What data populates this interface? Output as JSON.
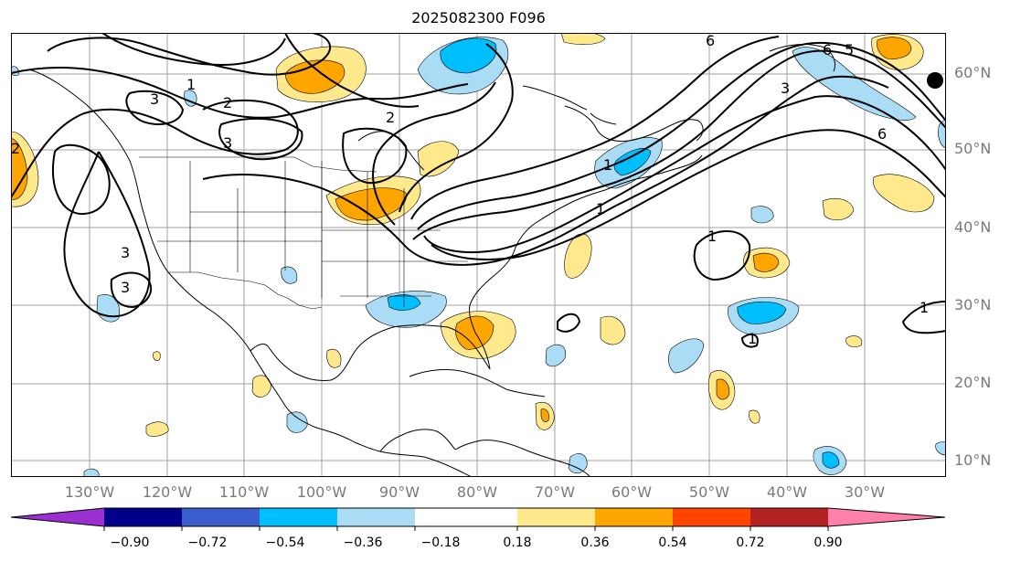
{
  "title": "2025082300 F096",
  "lat_labels": [
    "60°N",
    "50°N",
    "40°N",
    "30°N",
    "20°N",
    "10°N"
  ],
  "lon_labels": [
    "130°W",
    "120°W",
    "110°W",
    "100°W",
    "90°W",
    "80°W",
    "70°W",
    "60°W",
    "50°W",
    "40°W",
    "30°W"
  ],
  "contour_labels": [
    "1",
    "2",
    "3",
    "3",
    "2",
    "3",
    "2",
    "3",
    "1",
    "1",
    "6",
    "5",
    "6",
    "3",
    "6",
    "1",
    "1",
    "1"
  ],
  "colorbar": {
    "tick_labels": [
      "−0.90",
      "−0.72",
      "−0.54",
      "−0.36",
      "−0.18",
      "0.18",
      "0.36",
      "0.54",
      "0.72",
      "0.90"
    ],
    "colors": [
      "#9b30d0",
      "#00008b",
      "#3a5fcd",
      "#00bfff",
      "#aadcf5",
      "#ffffff",
      "#ffe98c",
      "#ffa500",
      "#ff4500",
      "#b22222",
      "#ff80aa"
    ]
  }
}
